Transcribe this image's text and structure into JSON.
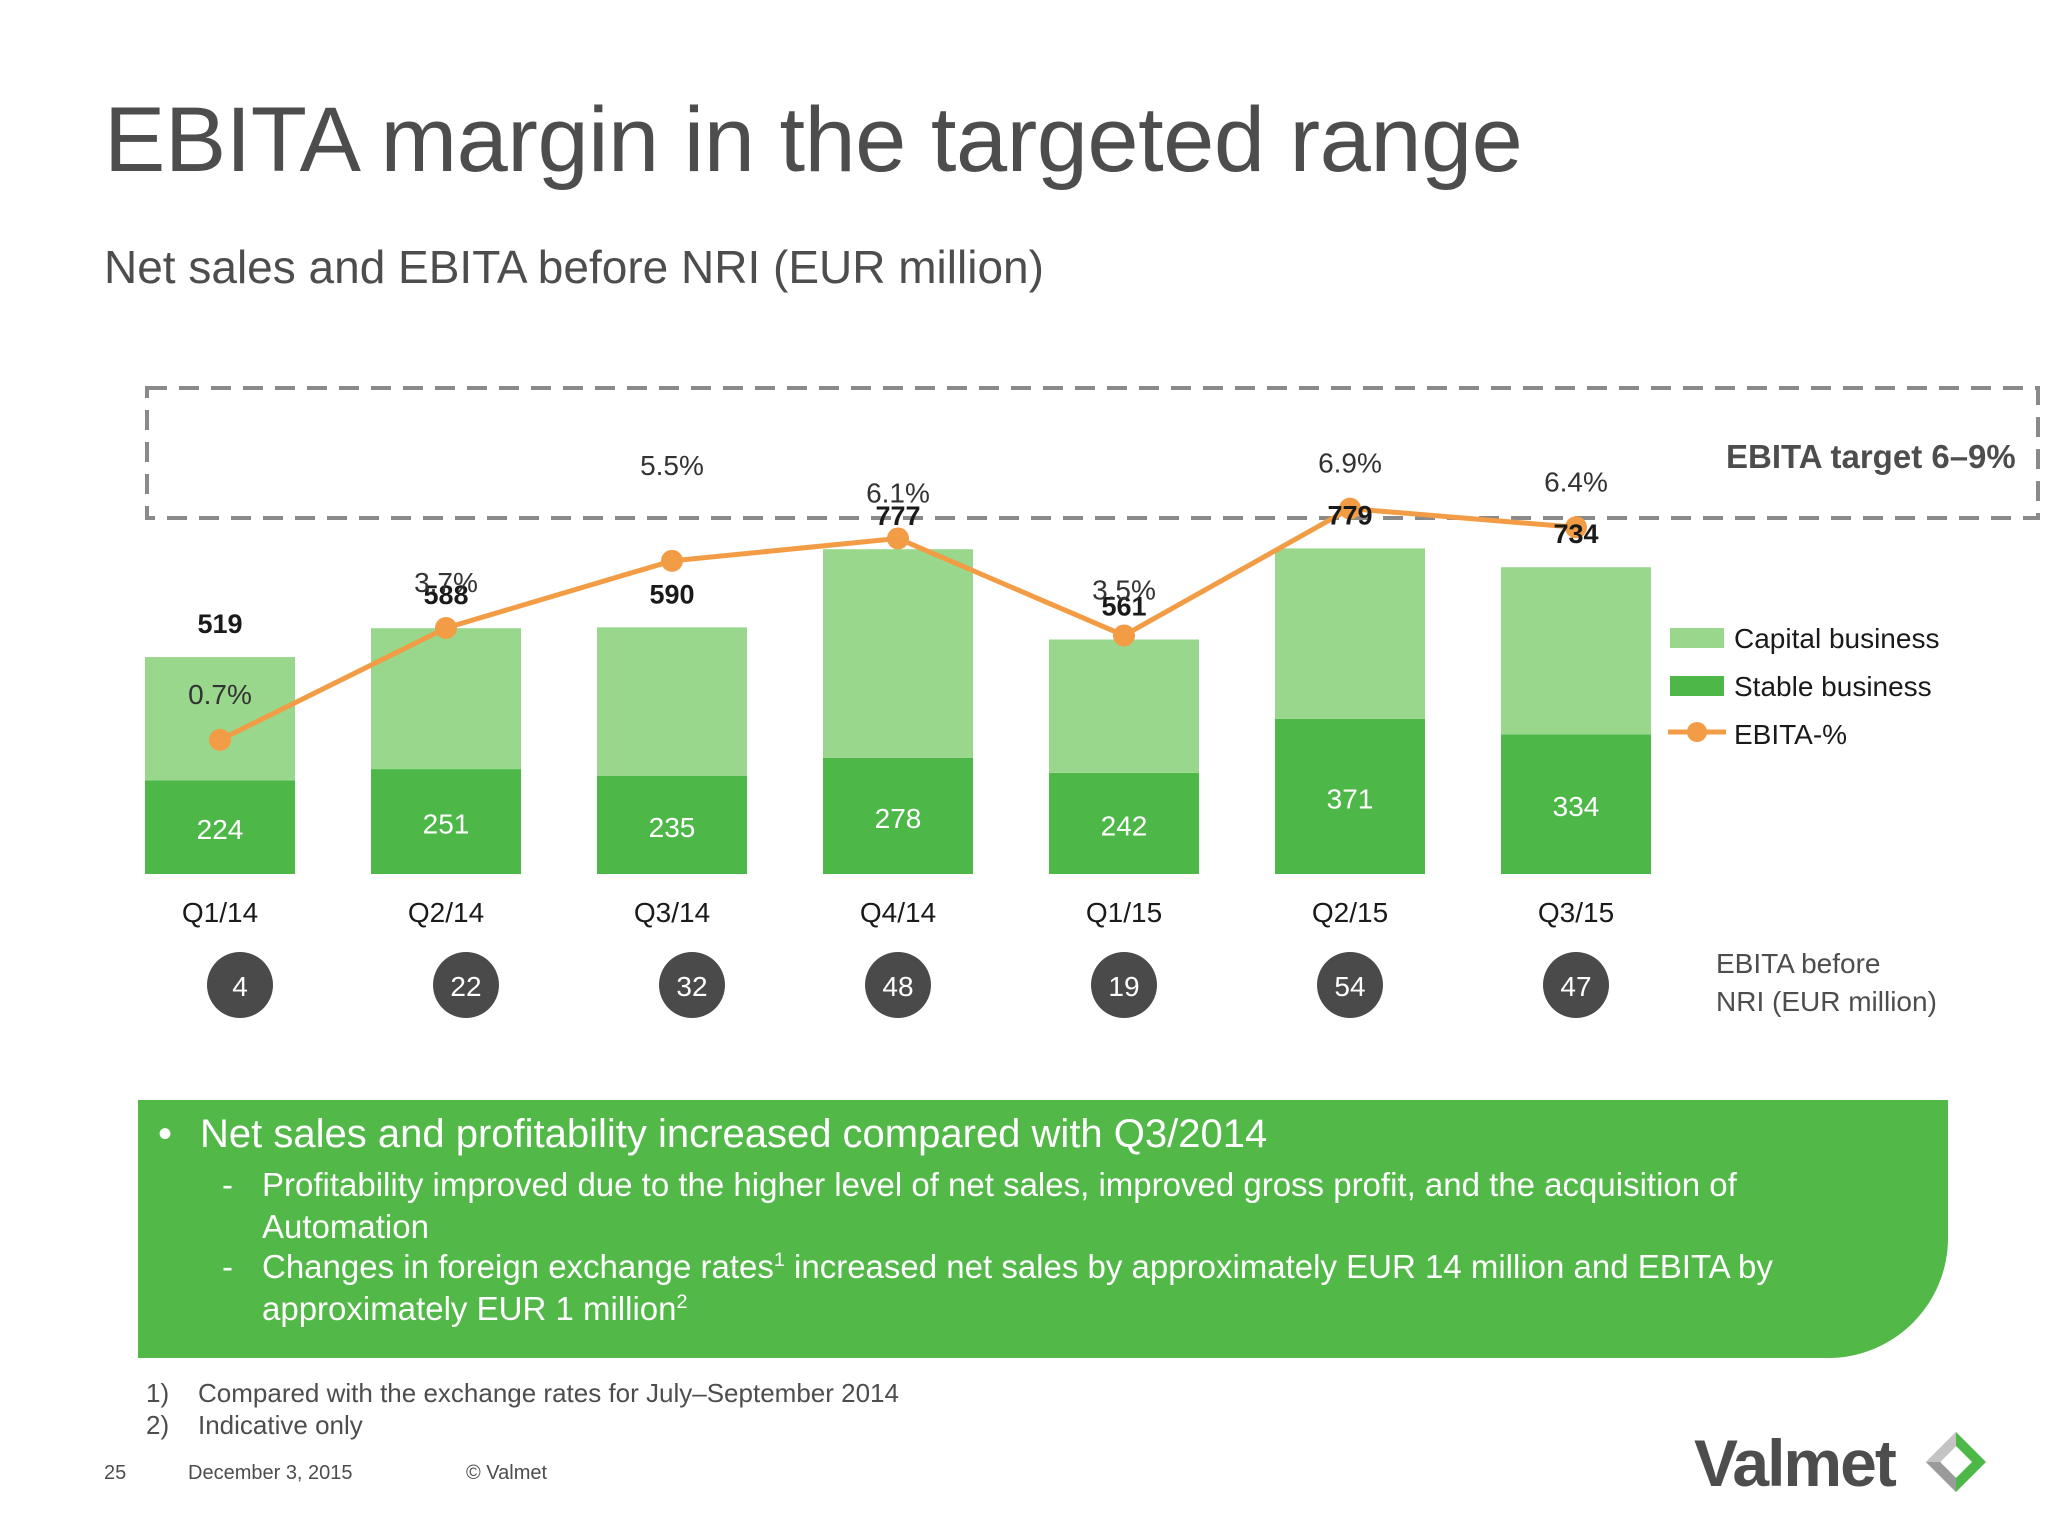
{
  "slide": {
    "title": "EBITA margin in the targeted range",
    "subtitle": "Net sales and EBITA before NRI (EUR million)"
  },
  "chart_data": {
    "type": "bar",
    "stacked": true,
    "categories": [
      "Q1/14",
      "Q2/14",
      "Q3/14",
      "Q4/14",
      "Q1/15",
      "Q2/15",
      "Q3/15"
    ],
    "series": [
      {
        "name": "Stable business",
        "values": [
          224,
          251,
          235,
          278,
          242,
          371,
          334
        ],
        "color": "#4db848"
      },
      {
        "name": "Capital business",
        "values": [
          295,
          337,
          355,
          499,
          319,
          408,
          400
        ],
        "color": "#98d78c"
      }
    ],
    "totals": [
      519,
      588,
      590,
      777,
      561,
      779,
      734
    ],
    "line_series": {
      "name": "EBITA-%",
      "values": [
        0.7,
        3.7,
        5.5,
        6.1,
        3.5,
        6.9,
        6.4
      ],
      "labels": [
        "0.7%",
        "3.7%",
        "5.5%",
        "6.1%",
        "3.5%",
        "6.9%",
        "6.4%"
      ],
      "color": "#f29c45"
    },
    "target_band": {
      "label": "EBITA target 6–9%",
      "min": 6,
      "max": 9
    },
    "ebita_before_nri": {
      "label_line1": "EBITA before",
      "label_line2": "NRI (EUR million)",
      "values": [
        4,
        22,
        32,
        48,
        19,
        54,
        47
      ]
    },
    "legend": {
      "position": "right",
      "items": [
        "Capital business",
        "Stable business",
        "EBITA-%"
      ]
    },
    "grid": false
  },
  "callout": {
    "bullet": "•",
    "headline": "Net sales and profitability increased compared with Q3/2014",
    "dash": "-",
    "point1": "Profitability improved due to the higher level of net sales, improved gross profit, and the acquisition of Automation",
    "point2_a": "Changes in foreign exchange rates",
    "point2_sup": "1",
    "point2_b": " increased net sales by approximately EUR 14 million and EBITA by approximately EUR 1 million",
    "point2_sup2": "2"
  },
  "footnotes": [
    {
      "num": "1)",
      "text": "Compared with the exchange rates for July–September 2014"
    },
    {
      "num": "2)",
      "text": "Indicative only"
    }
  ],
  "footer": {
    "page": "25",
    "date": "December 3, 2015",
    "copyright": "© Valmet"
  },
  "logo": {
    "text": "Valmet",
    "icon": "valmet-diamond-icon"
  }
}
